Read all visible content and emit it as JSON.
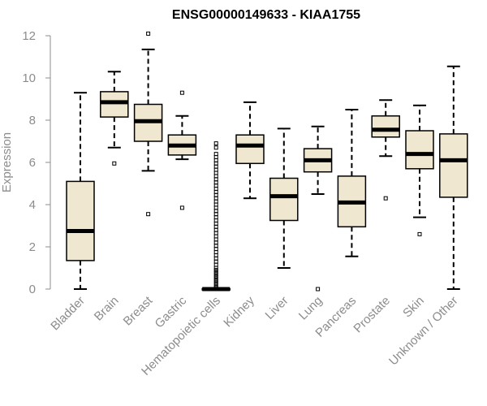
{
  "chart_data": {
    "type": "boxplot",
    "title": "ENSG00000149633 - KIAA1755",
    "xlabel": "",
    "ylabel": "Expression",
    "ylim": [
      0,
      12
    ],
    "yticks": [
      0,
      2,
      4,
      6,
      8,
      10,
      12
    ],
    "grid": false,
    "colors": {
      "box_fill": "#efe7d0",
      "stroke": "#000000",
      "axis": "#8c8c8c"
    },
    "categories": [
      "Bladder",
      "Brain",
      "Breast",
      "Gastric",
      "Hematopoietic cells",
      "Kidney",
      "Liver",
      "Lung",
      "Pancreas",
      "Prostate",
      "Skin",
      "Unknown / Other"
    ],
    "boxes": [
      {
        "category": "Bladder",
        "whisker_low": 0.0,
        "q1": 1.35,
        "median": 2.75,
        "q3": 5.1,
        "whisker_high": 9.3,
        "outliers": []
      },
      {
        "category": "Brain",
        "whisker_low": 6.7,
        "q1": 8.15,
        "median": 8.85,
        "q3": 9.35,
        "whisker_high": 10.3,
        "outliers": [
          5.95
        ]
      },
      {
        "category": "Breast",
        "whisker_low": 5.6,
        "q1": 7.0,
        "median": 7.95,
        "q3": 8.75,
        "whisker_high": 11.35,
        "outliers": [
          12.1,
          3.55
        ]
      },
      {
        "category": "Gastric",
        "whisker_low": 6.15,
        "q1": 6.35,
        "median": 6.8,
        "q3": 7.3,
        "whisker_high": 8.2,
        "outliers": [
          9.3,
          3.85
        ]
      },
      {
        "category": "Hematopoietic cells",
        "whisker_low": 0.0,
        "q1": 0.0,
        "median": 0.0,
        "q3": 0.02,
        "whisker_high": 0.05,
        "outliers": [
          6.9,
          6.7,
          6.4,
          6.25,
          6.1,
          5.95,
          5.8,
          5.65,
          5.5,
          5.35,
          5.2,
          5.05,
          4.9,
          4.75,
          4.6,
          4.45,
          4.3,
          4.15,
          4.0,
          3.85,
          3.7,
          3.55,
          3.4,
          3.25,
          3.1,
          2.95,
          2.8,
          2.65,
          2.5,
          2.35,
          2.2,
          2.05,
          1.9,
          1.75,
          1.6,
          1.45,
          1.3,
          1.15,
          1.0,
          0.9,
          0.8,
          0.7,
          0.6,
          0.5,
          0.4,
          0.3,
          0.2,
          0.1
        ]
      },
      {
        "category": "Kidney",
        "whisker_low": 4.3,
        "q1": 5.95,
        "median": 6.8,
        "q3": 7.3,
        "whisker_high": 8.85,
        "outliers": []
      },
      {
        "category": "Liver",
        "whisker_low": 1.0,
        "q1": 3.25,
        "median": 4.4,
        "q3": 5.25,
        "whisker_high": 7.6,
        "outliers": []
      },
      {
        "category": "Lung",
        "whisker_low": 4.5,
        "q1": 5.55,
        "median": 6.1,
        "q3": 6.65,
        "whisker_high": 7.7,
        "outliers": [
          0.0
        ]
      },
      {
        "category": "Pancreas",
        "whisker_low": 1.55,
        "q1": 2.95,
        "median": 4.1,
        "q3": 5.35,
        "whisker_high": 8.5,
        "outliers": []
      },
      {
        "category": "Prostate",
        "whisker_low": 6.3,
        "q1": 7.2,
        "median": 7.55,
        "q3": 8.2,
        "whisker_high": 8.95,
        "outliers": [
          4.3
        ]
      },
      {
        "category": "Skin",
        "whisker_low": 3.4,
        "q1": 5.7,
        "median": 6.4,
        "q3": 7.5,
        "whisker_high": 8.7,
        "outliers": [
          2.6
        ]
      },
      {
        "category": "Unknown / Other",
        "whisker_low": 0.0,
        "q1": 4.35,
        "median": 6.1,
        "q3": 7.35,
        "whisker_high": 10.55,
        "outliers": []
      }
    ]
  }
}
